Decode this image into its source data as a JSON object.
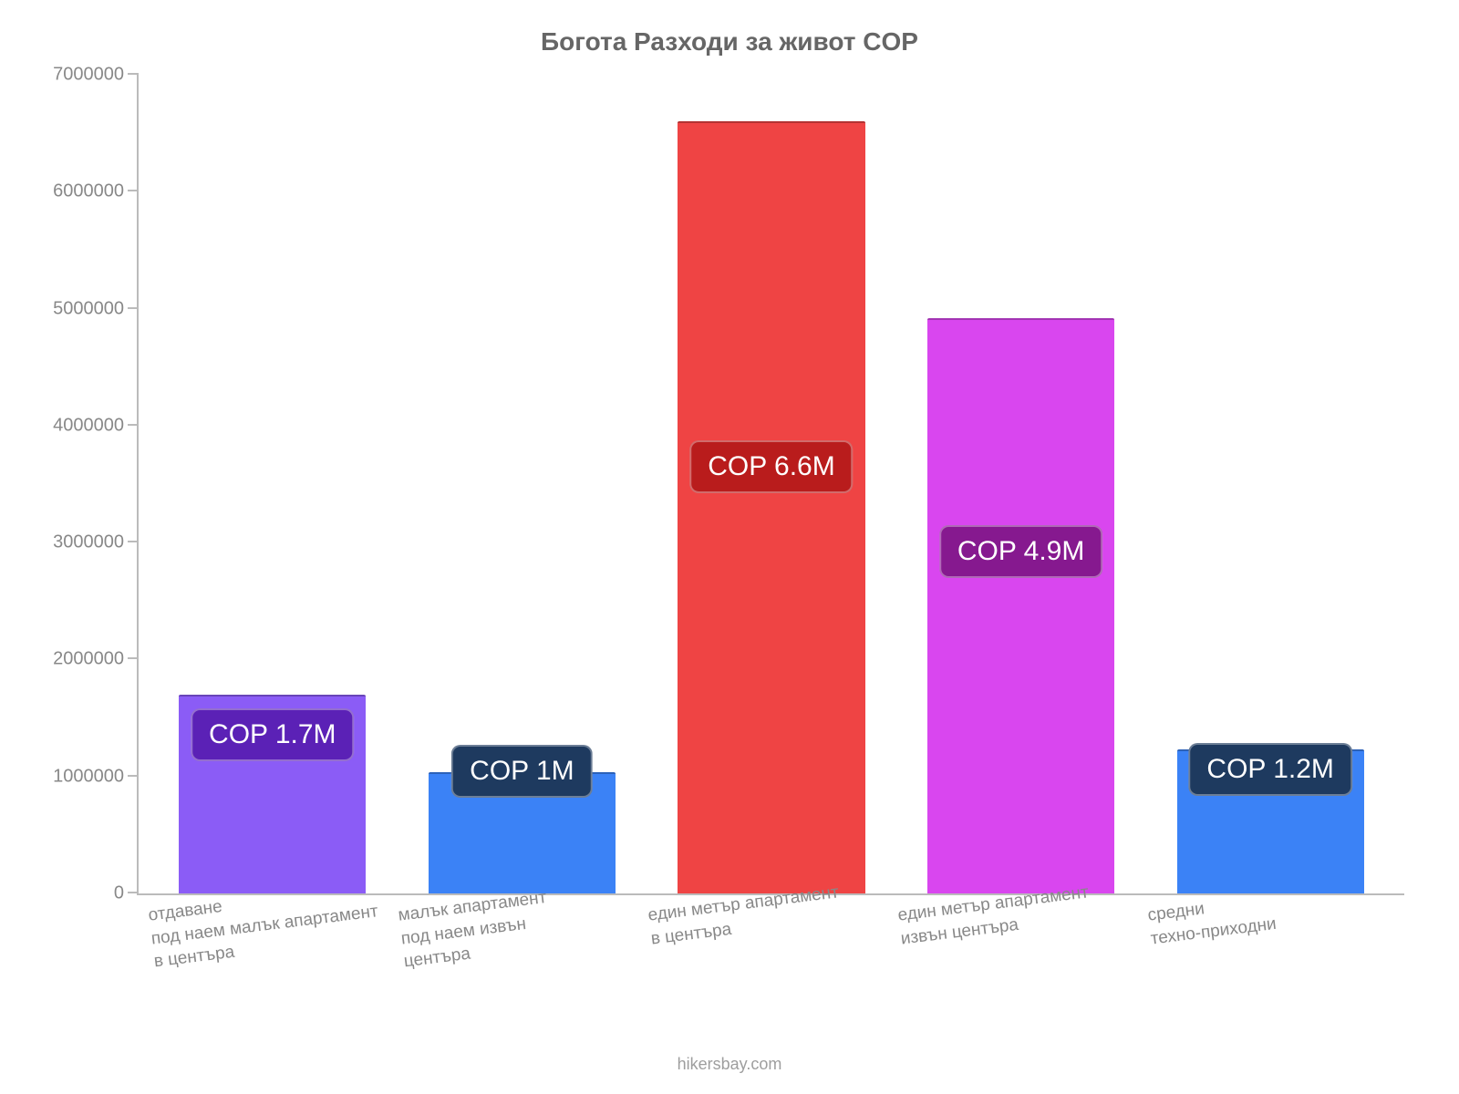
{
  "chart": {
    "type": "bar",
    "title": "Богота Разходи за живот COP",
    "title_fontsize": 28,
    "title_color": "#666666",
    "background_color": "#ffffff",
    "axis_color": "#bbbbbb",
    "tick_label_color": "#888888",
    "tick_fontsize": 20,
    "xlabel_fontsize": 19,
    "ylim": [
      0,
      7000000
    ],
    "ytick_step": 1000000,
    "yticks": [
      "0",
      "1000000",
      "2000000",
      "3000000",
      "4000000",
      "5000000",
      "6000000",
      "7000000"
    ],
    "bar_width_pct": 75,
    "categories": [
      "отдаване\nпод наем малък апартамент\nв центъра",
      "малък апартамент\nпод наем извън\nцентъра",
      "един метър апартамент\nв центъра",
      "един метър апартамент\nизвън центъра",
      "средни\nтехно-приходни"
    ],
    "values": [
      1700000,
      1040000,
      6600000,
      4920000,
      1230000
    ],
    "bar_colors": [
      "#8b5cf6",
      "#3b82f6",
      "#ef4444",
      "#d946ef",
      "#3b82f6"
    ],
    "badge_labels": [
      "COP 1.7M",
      "COP 1M",
      "COP 6.6M",
      "COP 4.9M",
      "COP 1.2M"
    ],
    "badge_bg_colors": [
      "#5b21b6",
      "#1e3a5f",
      "#b91c1c",
      "#86198f",
      "#1e3a5f"
    ],
    "badge_fontsize": 30,
    "badge_bottom_pct": [
      67,
      80,
      52,
      55,
      69
    ],
    "attribution": "hikersbay.com",
    "attribution_fontsize": 18,
    "attribution_color": "#9e9e9e"
  }
}
